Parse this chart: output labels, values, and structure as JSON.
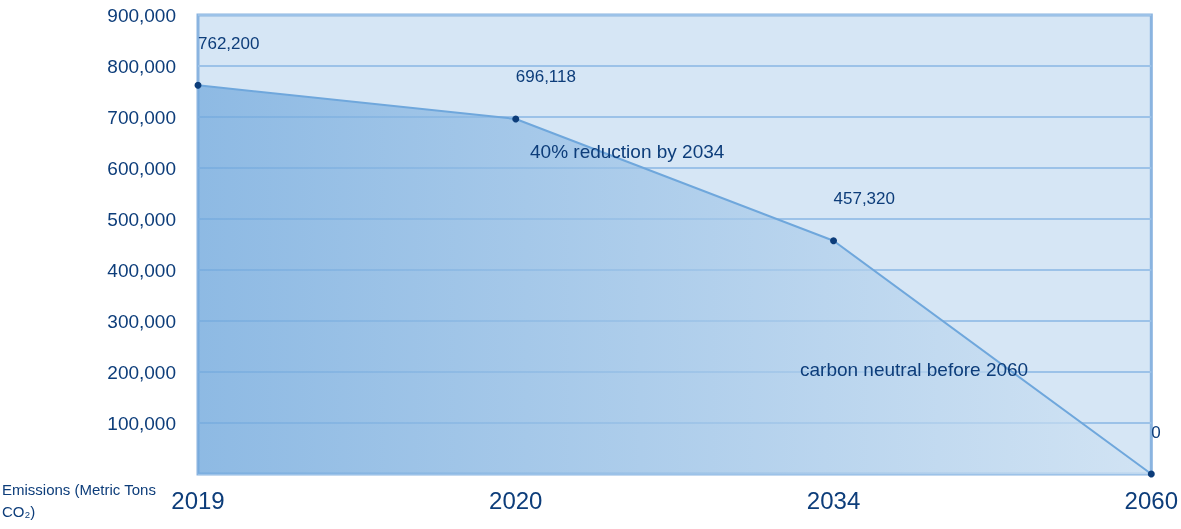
{
  "chart_data": {
    "type": "area",
    "categories": [
      "2019",
      "2020",
      "2034",
      "2060"
    ],
    "series": [
      {
        "color": "#6fa7dc",
        "values": [
          762200,
          696118,
          457320,
          0
        ],
        "value_labels": [
          "762,200",
          "696,118",
          "457,320",
          "0"
        ]
      }
    ],
    "ylabel": "Emissions (Metric Tons CO₂)",
    "ylim": [
      0,
      900000
    ],
    "yticks": [
      {
        "value": 0,
        "label": null
      },
      {
        "value": 100000,
        "label": "100,000"
      },
      {
        "value": 200000,
        "label": "200,000"
      },
      {
        "value": 300000,
        "label": "300,000"
      },
      {
        "value": 400000,
        "label": "400,000"
      },
      {
        "value": 500000,
        "label": "500,000"
      },
      {
        "value": 600000,
        "label": "600,000"
      },
      {
        "value": 700000,
        "label": "700,000"
      },
      {
        "value": 800000,
        "label": "800,000"
      },
      {
        "value": 900000,
        "label": "900,000"
      }
    ],
    "grid": "y",
    "marker": "circle",
    "annotations": [
      "40% reduction by 2034",
      "carbon neutral before 2060"
    ]
  }
}
